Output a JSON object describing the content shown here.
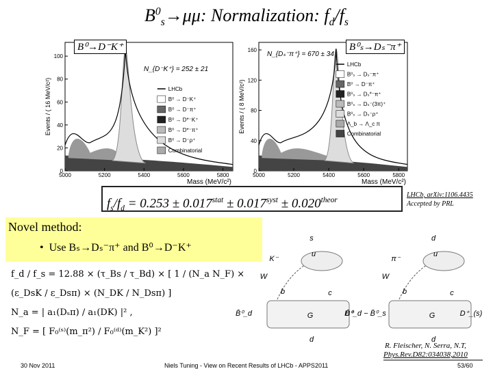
{
  "title": [
    "B",
    "0",
    "s",
    "→μμ: Normalization: f",
    "d",
    "/f",
    "s"
  ],
  "plots": [
    {
      "label": "B⁰→D⁻K⁺",
      "count": "N_{D⁻K⁺} = 252 ± 21",
      "y_axis_label": "Events / ( 16 MeV/c²)",
      "x_axis_label": "Mass (MeV/c²)",
      "xlim": [
        5000,
        5850
      ],
      "ylim": [
        0,
        112
      ],
      "xticks": [
        5000,
        5200,
        5400,
        5600,
        5800
      ],
      "yticks": [
        0,
        20,
        40,
        60,
        80,
        100
      ],
      "legend": [
        "LHCb",
        "B⁰ → D⁻K⁺",
        "B⁰ → D⁻π⁺",
        "B⁰ → D*⁻K⁺",
        "B⁰ → D*⁻π⁺",
        "B⁰ → D⁻ρ⁺",
        "Combinatorial"
      ]
    },
    {
      "label": "B⁰ₛ→Dₛ⁻π⁺",
      "count": "N_{Dₛ⁻π⁺} = 670 ± 34",
      "y_axis_label": "Events / ( 8 MeV/c²)",
      "x_axis_label": "Mass (MeV/c²)",
      "xlim": [
        5000,
        5850
      ],
      "ylim": [
        0,
        170
      ],
      "xticks": [
        5000,
        5200,
        5400,
        5600,
        5800
      ],
      "yticks": [
        0,
        40,
        80,
        120,
        160
      ],
      "legend": [
        "LHCb",
        "B⁰ₛ → Dₛ⁻π⁺",
        "B⁰ → D⁻π⁺",
        "B⁰ₛ → Dₛ*⁻π⁺",
        "B⁰ₛ → Dₛ⁻(3π)⁺",
        "B⁰ₛ → Dₛ⁻ρ⁺",
        "Λ_b → Λ_c π",
        "Combinatorial"
      ]
    }
  ],
  "result": [
    "f",
    "s",
    "/f",
    "d",
    " = 0.253 ± 0.017",
    "stat",
    " ± 0.017",
    "syst",
    " ± 0.020",
    "theor"
  ],
  "reference": [
    "LHCb, arXiv:1106.4435",
    "Accepted by PRL"
  ],
  "novel_method": {
    "heading": "Novel method:",
    "bullet": "Use Bₛ→Dₛ⁻π⁺ and B⁰→D⁻K⁺"
  },
  "equations": [
    "f_d / f_s = 12.88 × (τ_Bs / τ_Bd) × [ 1 / (N_a N_F) × (ε_DsK / ε_Dsπ) × (N_DK / N_Dsπ) ]",
    "N_a = | a₁(Dₛπ) / a₁(DK) |² ,",
    "N_F = [ F₀⁽ˢ⁾(m_π²) / F₀⁽ᵈ⁾(m_K²) ]²"
  ],
  "diagrams": [
    {
      "labels": [
        "s",
        "u",
        "K⁻",
        "W",
        "b",
        "c",
        "B̄⁰_d",
        "G",
        "D⁺",
        "d"
      ]
    },
    {
      "labels": [
        "d",
        "u",
        "π⁻",
        "W",
        "b",
        "c",
        "B̄⁰_d − B̄⁰_s",
        "G",
        "D⁺_(s)",
        "d"
      ]
    }
  ],
  "citation": [
    "R. Fleischer, N. Serra, N.T,",
    "Phys.Rev.D82:034038,2010"
  ],
  "footer": {
    "date": "30 Nov 2011",
    "talk": "Niels Tuning  -  View on Recent Results of LHCb  -  APPS2011",
    "page": "53/60"
  }
}
